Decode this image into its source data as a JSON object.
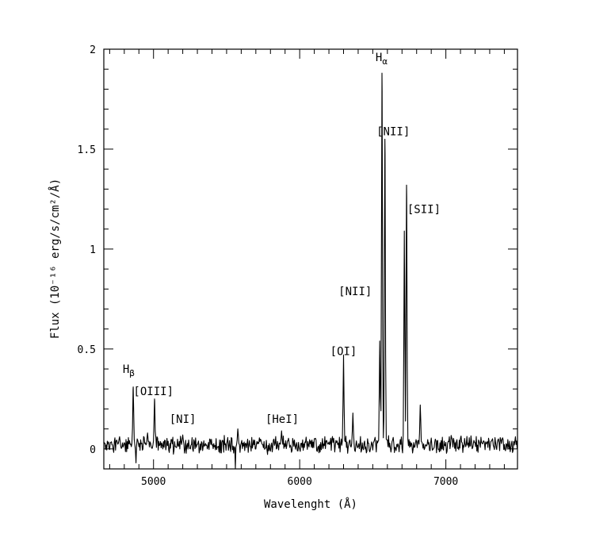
{
  "chart_data": {
    "type": "line",
    "title": "",
    "xlabel": "Wavelenght (Å)",
    "ylabel": "Flux (10⁻¹⁶ erg/s/cm²/Å)",
    "xlim": [
      4660,
      7490
    ],
    "ylim": [
      -0.1,
      2.0
    ],
    "x_ticks": [
      5000,
      6000,
      7000
    ],
    "x_tick_labels": [
      "5000",
      "6000",
      "7000"
    ],
    "y_ticks": [
      0,
      0.5,
      1,
      1.5,
      2
    ],
    "y_tick_labels": [
      "0",
      "0.5",
      "1",
      "1.5",
      "2"
    ],
    "grid": false,
    "legend": "none",
    "line_color": "#000000",
    "continuum_level": 0.02,
    "series": [
      {
        "emission_lines": [
          {
            "x": 4861,
            "y": 0.31
          },
          {
            "x": 4959,
            "y": 0.08
          },
          {
            "x": 5007,
            "y": 0.25
          },
          {
            "x": 5200,
            "y": 0.07
          },
          {
            "x": 5577,
            "y": 0.1
          },
          {
            "x": 5876,
            "y": 0.09
          },
          {
            "x": 6300,
            "y": 0.47
          },
          {
            "x": 6364,
            "y": 0.18
          },
          {
            "x": 6548,
            "y": 0.54
          },
          {
            "x": 6563,
            "y": 1.88
          },
          {
            "x": 6583,
            "y": 1.55
          },
          {
            "x": 6716,
            "y": 1.09
          },
          {
            "x": 6731,
            "y": 1.32
          },
          {
            "x": 6825,
            "y": 0.22
          }
        ],
        "absorption_dips": [
          {
            "x": 4880,
            "y": -0.07
          },
          {
            "x": 5560,
            "y": -0.1
          }
        ]
      }
    ],
    "annotations": [
      {
        "text": "H",
        "sub": "β",
        "x": 4830,
        "y": 0.38
      },
      {
        "text": "[OIII]",
        "sub": "",
        "x": 5000,
        "y": 0.27
      },
      {
        "text": "[NI]",
        "sub": "",
        "x": 5200,
        "y": 0.13
      },
      {
        "text": "[HeI]",
        "sub": "",
        "x": 5880,
        "y": 0.13
      },
      {
        "text": "[OI]",
        "sub": "",
        "x": 6300,
        "y": 0.47
      },
      {
        "text": "[NII]",
        "sub": "",
        "x": 6380,
        "y": 0.77
      },
      {
        "text": "H",
        "sub": "α",
        "x": 6560,
        "y": 1.94
      },
      {
        "text": "[NII]",
        "sub": "",
        "x": 6640,
        "y": 1.57
      },
      {
        "text": "[SII]",
        "sub": "",
        "x": 6850,
        "y": 1.18
      }
    ]
  }
}
